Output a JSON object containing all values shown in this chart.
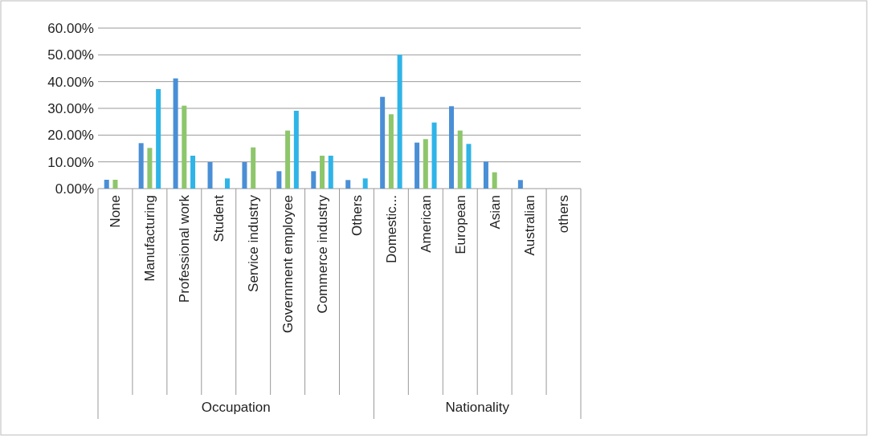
{
  "chart_data": {
    "type": "bar",
    "categories": [
      "None",
      "Manufacturing",
      "Professional work",
      "Student",
      "Service industry",
      "Government employee",
      "Commerce industry",
      "Others",
      "Domestic...",
      "American",
      "European",
      "Asian",
      "Australian",
      "others"
    ],
    "series": [
      {
        "color": "#4a8fd6",
        "values": [
          3.3,
          17.0,
          41.2,
          9.9,
          9.9,
          6.5,
          6.5,
          3.2,
          34.3,
          17.2,
          30.8,
          10.1,
          3.2,
          0
        ]
      },
      {
        "color": "#8dc66b",
        "values": [
          3.3,
          15.2,
          31.0,
          0,
          15.4,
          21.7,
          12.3,
          0,
          27.8,
          18.5,
          21.7,
          6.1,
          0,
          0
        ]
      },
      {
        "color": "#2fb4e8",
        "values": [
          0,
          37.2,
          12.3,
          3.8,
          0,
          29.1,
          12.3,
          3.8,
          50.0,
          24.7,
          16.7,
          0,
          0,
          0
        ]
      }
    ],
    "ylim": [
      0,
      60
    ],
    "yticks": [
      {
        "value": 0,
        "label": "0.00%"
      },
      {
        "value": 10,
        "label": "10.00%"
      },
      {
        "value": 20,
        "label": "20.00%"
      },
      {
        "value": 30,
        "label": "30.00%"
      },
      {
        "value": 40,
        "label": "40.00%"
      },
      {
        "value": 50,
        "label": "50.00%"
      },
      {
        "value": 60,
        "label": "60.00%"
      }
    ],
    "grid": "y",
    "annotations": [
      "Occupation",
      "Nationality"
    ]
  }
}
